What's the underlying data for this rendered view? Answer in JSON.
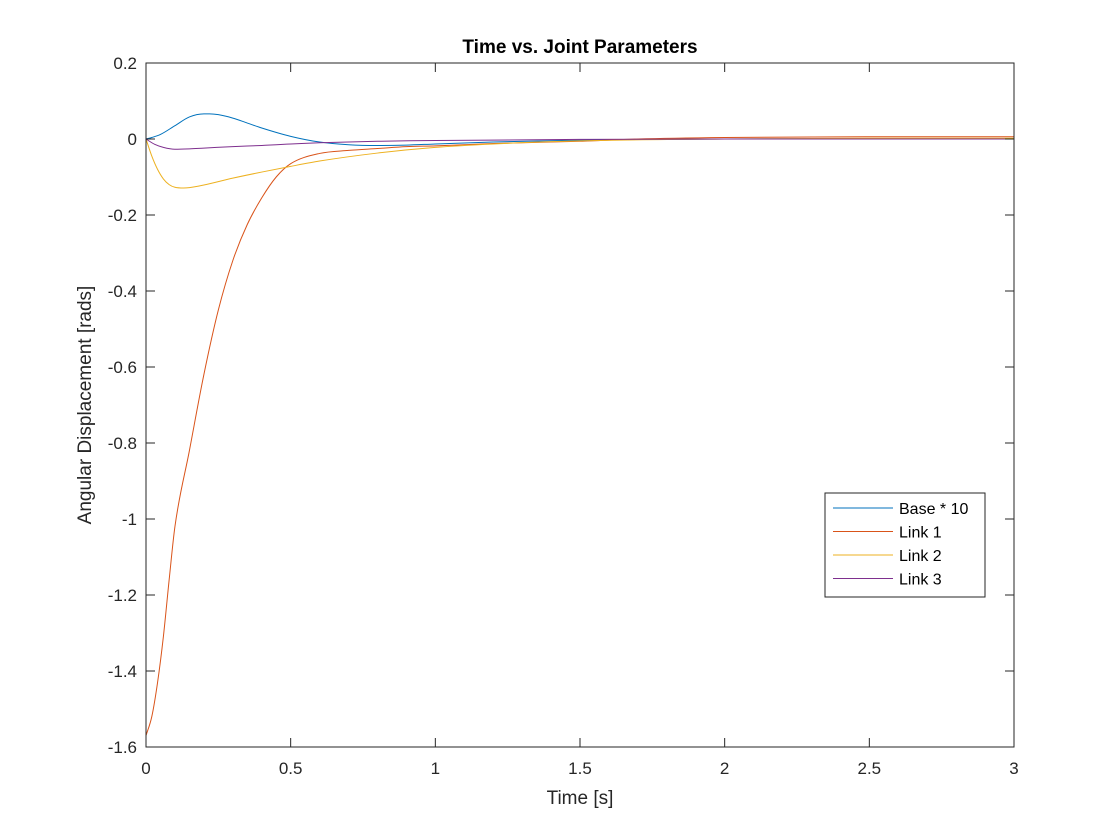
{
  "chart_data": {
    "type": "line",
    "title": "Time vs. Joint Parameters",
    "xlabel": "Time [s]",
    "ylabel": "Angular Displacement [rads]",
    "xlim": [
      0,
      3
    ],
    "ylim": [
      -1.6,
      0.2
    ],
    "xticks": [
      0,
      0.5,
      1,
      1.5,
      2,
      2.5,
      3
    ],
    "xtick_labels": [
      "0",
      "0.5",
      "1",
      "1.5",
      "2",
      "2.5",
      "3"
    ],
    "yticks": [
      -1.6,
      -1.4,
      -1.2,
      -1,
      -0.8,
      -0.6,
      -0.4,
      -0.2,
      0,
      0.2
    ],
    "ytick_labels": [
      "-1.6",
      "-1.4",
      "-1.2",
      "-1",
      "-0.8",
      "-0.6",
      "-0.4",
      "-0.2",
      "0",
      "0.2"
    ],
    "grid": false,
    "legend_position": "right-middle",
    "series": [
      {
        "name": "Base * 10",
        "color": "#0072BD",
        "x": [
          0,
          0.02,
          0.05,
          0.1,
          0.15,
          0.2,
          0.22,
          0.25,
          0.3,
          0.35,
          0.4,
          0.5,
          0.6,
          0.7,
          0.8,
          0.9,
          1.0,
          1.2,
          1.5,
          2.0,
          2.5,
          3.0
        ],
        "y": [
          0,
          0.004,
          0.012,
          0.035,
          0.058,
          0.066,
          0.066,
          0.064,
          0.055,
          0.042,
          0.029,
          0.007,
          -0.008,
          -0.015,
          -0.017,
          -0.016,
          -0.013,
          -0.008,
          -0.003,
          0.0,
          0.001,
          0.001
        ]
      },
      {
        "name": "Link 1",
        "color": "#D95319",
        "x": [
          0,
          0.02,
          0.04,
          0.06,
          0.08,
          0.1,
          0.15,
          0.2,
          0.25,
          0.3,
          0.35,
          0.4,
          0.45,
          0.5,
          0.6,
          0.7,
          0.8,
          0.9,
          1.0,
          1.2,
          1.5,
          1.7,
          2.0,
          2.5,
          3.0
        ],
        "y": [
          -1.57,
          -1.52,
          -1.43,
          -1.31,
          -1.16,
          -1.02,
          -0.82,
          -0.62,
          -0.45,
          -0.32,
          -0.225,
          -0.155,
          -0.1,
          -0.065,
          -0.038,
          -0.03,
          -0.025,
          -0.02,
          -0.018,
          -0.012,
          -0.006,
          0.0,
          0.004,
          0.006,
          0.006
        ]
      },
      {
        "name": "Link 2",
        "color": "#EDB120",
        "x": [
          0,
          0.02,
          0.04,
          0.06,
          0.08,
          0.1,
          0.13,
          0.15,
          0.2,
          0.3,
          0.4,
          0.5,
          0.6,
          0.8,
          1.0,
          1.2,
          1.5,
          2.0,
          2.5,
          3.0
        ],
        "y": [
          0,
          -0.045,
          -0.08,
          -0.105,
          -0.12,
          -0.127,
          -0.129,
          -0.128,
          -0.121,
          -0.103,
          -0.087,
          -0.072,
          -0.058,
          -0.037,
          -0.022,
          -0.013,
          -0.005,
          0.0,
          0.002,
          0.002
        ]
      },
      {
        "name": "Link 3",
        "color": "#7E2F8E",
        "x": [
          0,
          0.03,
          0.06,
          0.1,
          0.15,
          0.2,
          0.3,
          0.4,
          0.5,
          0.6,
          0.8,
          1.0,
          1.5,
          2.0,
          2.5,
          3.0
        ],
        "y": [
          0,
          -0.014,
          -0.022,
          -0.027,
          -0.026,
          -0.024,
          -0.02,
          -0.017,
          -0.013,
          -0.01,
          -0.006,
          -0.004,
          -0.001,
          0.0,
          0.0,
          0.0
        ]
      }
    ]
  }
}
